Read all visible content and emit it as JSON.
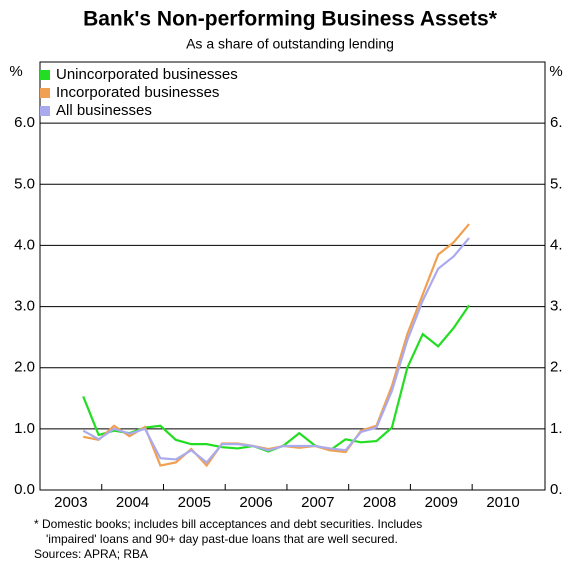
{
  "chart_data": {
    "type": "line",
    "title": "Bank's Non-performing Business Assets*",
    "subtitle": "As a share of outstanding lending",
    "y_label": "%",
    "footnote": "*  Domestic books; includes bill acceptances and debt securities. Includes",
    "footnote_2": "'impaired' loans and 90+ day past-due loans that are well secured.",
    "sources": "Sources: APRA; RBA",
    "x": [
      2003.7,
      2003.95,
      2004.2,
      2004.45,
      2004.7,
      2004.95,
      2005.2,
      2005.45,
      2005.7,
      2005.95,
      2006.2,
      2006.45,
      2006.7,
      2006.95,
      2007.2,
      2007.45,
      2007.7,
      2007.95,
      2008.2,
      2008.45,
      2008.7,
      2008.95,
      2009.2,
      2009.45,
      2009.7,
      2009.95
    ],
    "series": [
      {
        "name": "Unincorporated businesses",
        "color": "#22dd22",
        "values": [
          1.53,
          0.9,
          0.97,
          0.93,
          1.02,
          1.05,
          0.82,
          0.75,
          0.75,
          0.7,
          0.68,
          0.72,
          0.63,
          0.73,
          0.93,
          0.73,
          0.65,
          0.83,
          0.78,
          0.8,
          1.02,
          2.0,
          2.55,
          2.35,
          2.65,
          3.02
        ]
      },
      {
        "name": "Incorporated businesses",
        "color": "#f0a050",
        "values": [
          0.87,
          0.82,
          1.05,
          0.88,
          1.03,
          0.4,
          0.45,
          0.67,
          0.4,
          0.76,
          0.76,
          0.72,
          0.67,
          0.72,
          0.69,
          0.72,
          0.65,
          0.62,
          0.97,
          1.05,
          1.7,
          2.55,
          3.2,
          3.85,
          4.05,
          4.35
        ]
      },
      {
        "name": "All businesses",
        "color": "#aaaaee",
        "values": [
          0.97,
          0.83,
          1.0,
          0.92,
          1.0,
          0.52,
          0.5,
          0.65,
          0.45,
          0.75,
          0.75,
          0.72,
          0.65,
          0.72,
          0.72,
          0.72,
          0.68,
          0.65,
          0.95,
          1.02,
          1.62,
          2.45,
          3.1,
          3.62,
          3.82,
          4.12
        ]
      }
    ],
    "xlim": [
      2003,
      2011.18
    ],
    "xticks": [
      {
        "value": 2003.5,
        "label": "2003"
      },
      {
        "value": 2004.5,
        "label": "2004"
      },
      {
        "value": 2005.5,
        "label": "2005"
      },
      {
        "value": 2006.5,
        "label": "2006"
      },
      {
        "value": 2007.5,
        "label": "2007"
      },
      {
        "value": 2008.5,
        "label": "2008"
      },
      {
        "value": 2009.5,
        "label": "2009"
      },
      {
        "value": 2010.5,
        "label": "2010"
      }
    ],
    "ylim": [
      0,
      7
    ],
    "yticks": [
      {
        "value": 0,
        "label": "0.0"
      },
      {
        "value": 1,
        "label": "1.0"
      },
      {
        "value": 2,
        "label": "2.0"
      },
      {
        "value": 3,
        "label": "3.0"
      },
      {
        "value": 4,
        "label": "4.0"
      },
      {
        "value": 5,
        "label": "5.0"
      },
      {
        "value": 6,
        "label": "6.0"
      }
    ],
    "grid": true,
    "legend": "top-left"
  }
}
